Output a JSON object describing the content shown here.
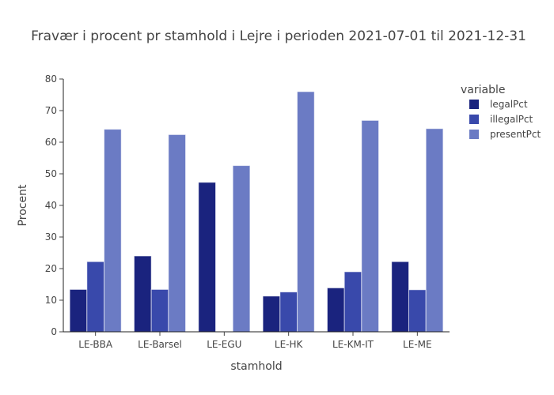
{
  "chart_data": {
    "type": "bar",
    "title": "Fravær i procent pr stamhold i Lejre i perioden 2021-07-01 til 2021-12-31",
    "xlabel": "stamhold",
    "ylabel": "Procent",
    "ylim": [
      0,
      80
    ],
    "yticks": [
      0,
      10,
      20,
      30,
      40,
      50,
      60,
      70,
      80
    ],
    "grid": false,
    "legend": {
      "title": "variable",
      "placement": "right"
    },
    "categories": [
      "LE-BBA",
      "LE-Barsel",
      "LE-EGU",
      "LE-HK",
      "LE-KM-IT",
      "LE-ME"
    ],
    "series": [
      {
        "name": "legalPct",
        "color": "#1a237e",
        "values": [
          13.4,
          24.0,
          47.3,
          11.3,
          13.9,
          22.2
        ]
      },
      {
        "name": "illegalPct",
        "color": "#3949ab",
        "values": [
          22.2,
          13.4,
          0,
          12.6,
          19.0,
          13.3
        ]
      },
      {
        "name": "presentPct",
        "color": "#6b7bc4",
        "values": [
          64.1,
          62.4,
          52.6,
          76.0,
          66.9,
          64.3
        ]
      }
    ]
  }
}
